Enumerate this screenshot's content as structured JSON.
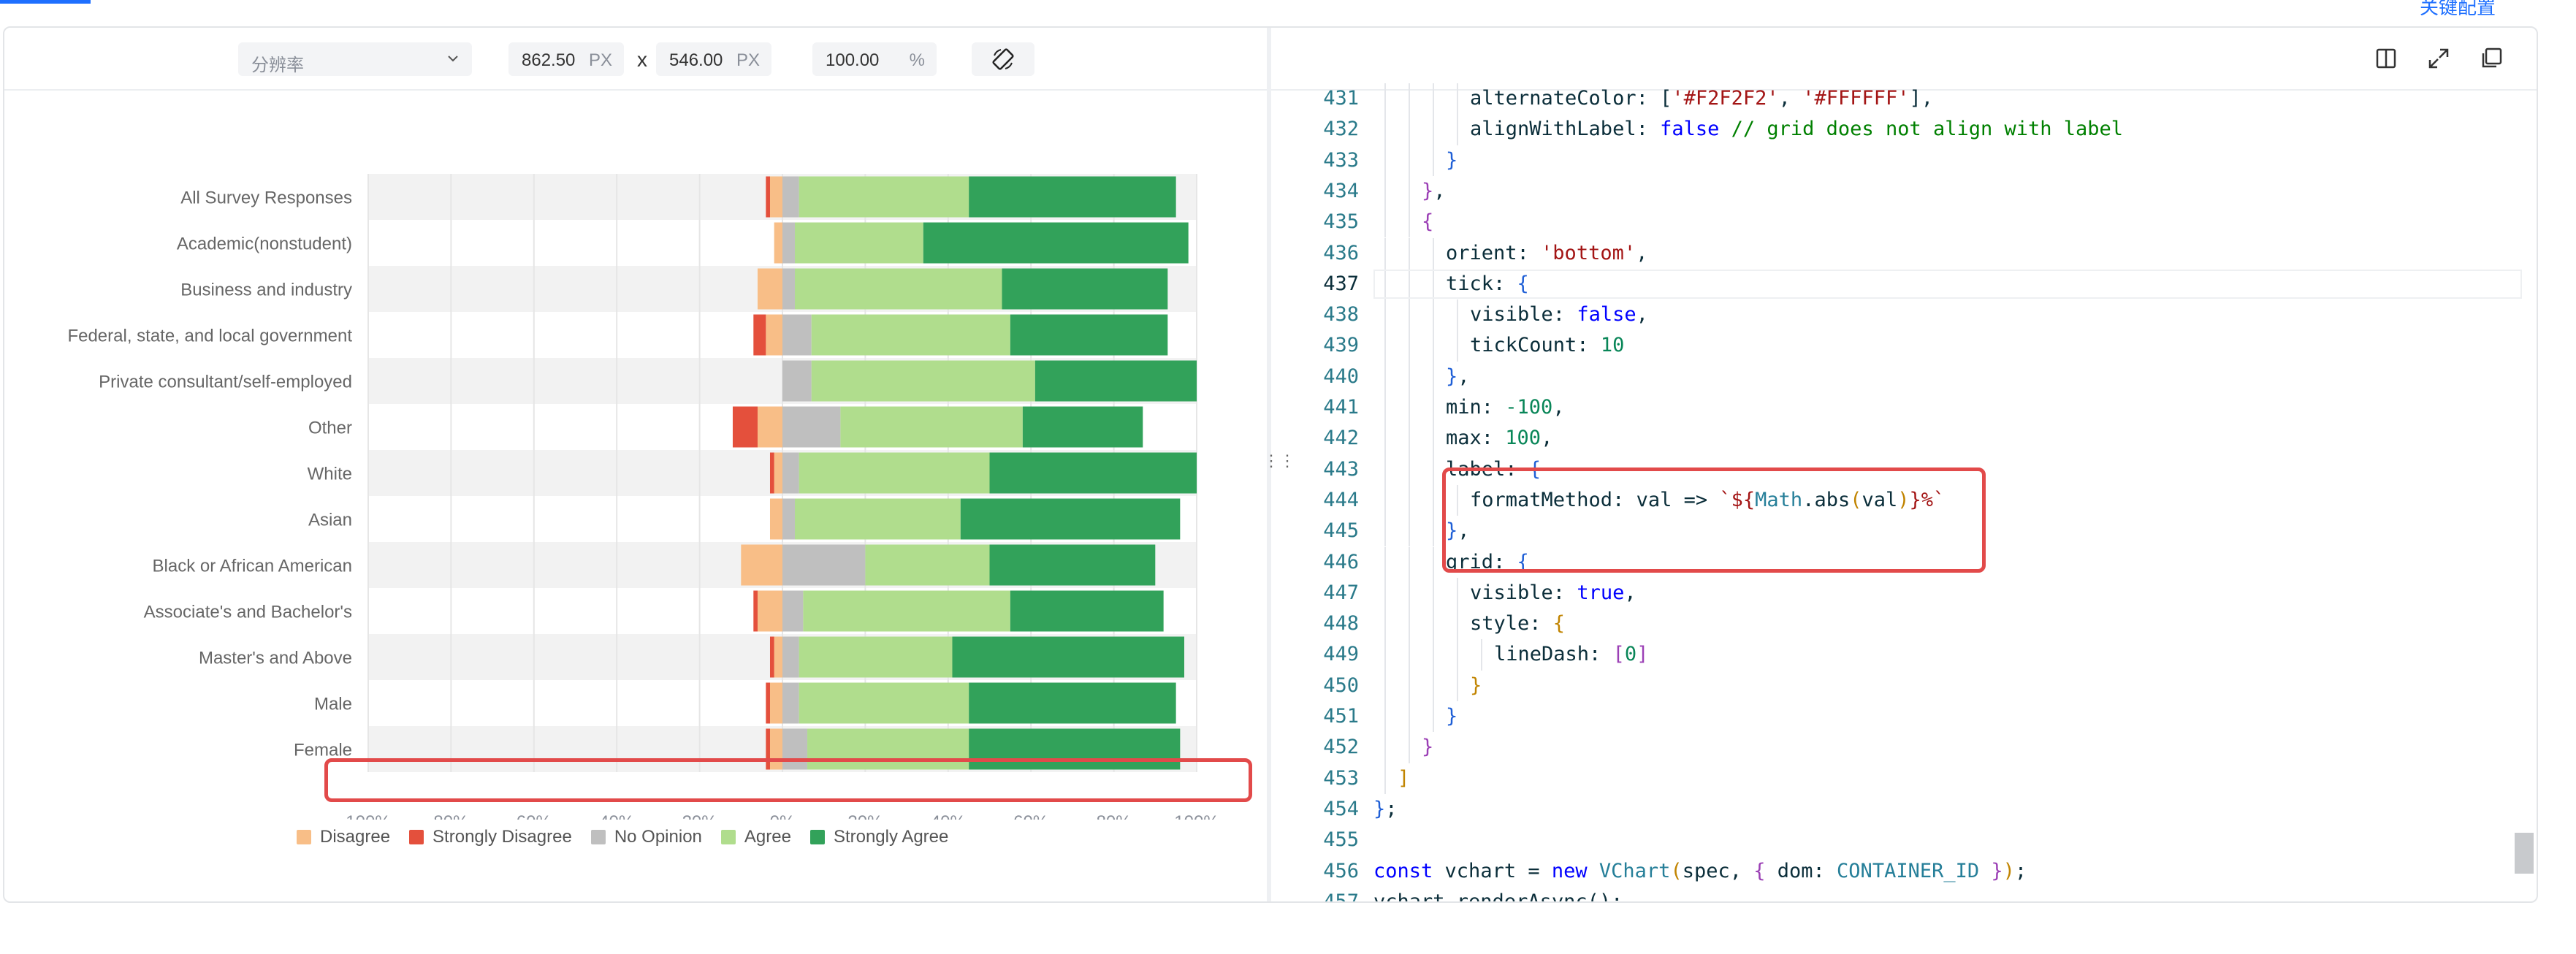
{
  "top_right_link": "关键配置",
  "toolbar": {
    "resolution_placeholder": "分辨率",
    "width_value": "862.50",
    "width_unit": "PX",
    "separator": "x",
    "height_value": "546.00",
    "height_unit": "PX",
    "zoom_value": "100.00",
    "zoom_unit": "%"
  },
  "chart_data": {
    "type": "bar",
    "stacked": true,
    "orientation": "horizontal",
    "categories": [
      "All Survey Responses",
      "Academic(nonstudent)",
      "Business and industry",
      "Federal, state, and local government",
      "Private consultant/self-employed",
      "Other",
      "White",
      "Asian",
      "Black or African American",
      "Associate's and Bachelor's",
      "Master's and Above",
      "Male",
      "Female"
    ],
    "series": [
      {
        "name": "Disagree",
        "color": "#f8be87",
        "values": [
          -3,
          -2,
          -6,
          -4,
          0,
          -6,
          -2,
          -3,
          -10,
          -6,
          -2,
          -3,
          -3
        ]
      },
      {
        "name": "Strongly Disagree",
        "color": "#e4503c",
        "values": [
          -1,
          0,
          0,
          -3,
          0,
          -6,
          -1,
          0,
          0,
          -1,
          -1,
          -1,
          -1
        ]
      },
      {
        "name": "No Opinion",
        "color": "#bfbfbf",
        "values": [
          4,
          3,
          3,
          7,
          7,
          14,
          4,
          3,
          20,
          5,
          4,
          4,
          6
        ]
      },
      {
        "name": "Agree",
        "color": "#b0dd8d",
        "values": [
          41,
          31,
          50,
          48,
          54,
          44,
          46,
          40,
          30,
          50,
          37,
          41,
          39
        ]
      },
      {
        "name": "Strongly Agree",
        "color": "#32a25a",
        "values": [
          50,
          64,
          40,
          38,
          39,
          29,
          50,
          53,
          40,
          37,
          56,
          50,
          51
        ]
      }
    ],
    "xlim": [
      -100,
      100
    ],
    "x_tick_labels": [
      "100%",
      "80%",
      "60%",
      "40%",
      "20%",
      "0%",
      "20%",
      "40%",
      "60%",
      "80%",
      "100%"
    ],
    "grid": true,
    "alternate_band_colors": [
      "#f2f2f2",
      "#ffffff"
    ],
    "legend_position": "bottom-left"
  },
  "code": {
    "lines": [
      {
        "n": "431",
        "indent": 4,
        "tokens": [
          [
            "t-key",
            "alternateColor: "
          ],
          [
            "t-punc",
            "["
          ],
          [
            "t-str",
            "'#F2F2F2'"
          ],
          [
            "t-punc",
            ", "
          ],
          [
            "t-str",
            "'#FFFFFF'"
          ],
          [
            "t-punc",
            "],"
          ]
        ]
      },
      {
        "n": "432",
        "indent": 4,
        "tokens": [
          [
            "t-key",
            "alignWithLabel: "
          ],
          [
            "t-bool",
            "false"
          ],
          [
            "t-com",
            " // grid does not align with label"
          ]
        ]
      },
      {
        "n": "433",
        "indent": 3,
        "tokens": [
          [
            "t-b3",
            "}"
          ]
        ]
      },
      {
        "n": "434",
        "indent": 2,
        "tokens": [
          [
            "t-b2",
            "}"
          ],
          [
            "t-punc",
            ","
          ]
        ]
      },
      {
        "n": "435",
        "indent": 2,
        "tokens": [
          [
            "t-b2",
            "{"
          ]
        ]
      },
      {
        "n": "436",
        "indent": 3,
        "tokens": [
          [
            "t-key",
            "orient: "
          ],
          [
            "t-str",
            "'bottom'"
          ],
          [
            "t-punc",
            ","
          ]
        ]
      },
      {
        "n": "437",
        "indent": 3,
        "tokens": [
          [
            "t-key",
            "tick: "
          ],
          [
            "t-b3",
            "{"
          ]
        ]
      },
      {
        "n": "438",
        "indent": 4,
        "tokens": [
          [
            "t-key",
            "visible: "
          ],
          [
            "t-bool",
            "false"
          ],
          [
            "t-punc",
            ","
          ]
        ]
      },
      {
        "n": "439",
        "indent": 4,
        "tokens": [
          [
            "t-key",
            "tickCount: "
          ],
          [
            "t-num",
            "10"
          ]
        ]
      },
      {
        "n": "440",
        "indent": 3,
        "tokens": [
          [
            "t-b3",
            "}"
          ],
          [
            "t-punc",
            ","
          ]
        ]
      },
      {
        "n": "441",
        "indent": 3,
        "tokens": [
          [
            "t-key",
            "min: "
          ],
          [
            "t-num",
            "-100"
          ],
          [
            "t-punc",
            ","
          ]
        ]
      },
      {
        "n": "442",
        "indent": 3,
        "tokens": [
          [
            "t-key",
            "max: "
          ],
          [
            "t-num",
            "100"
          ],
          [
            "t-punc",
            ","
          ]
        ]
      },
      {
        "n": "443",
        "indent": 3,
        "tokens": [
          [
            "t-key",
            "label: "
          ],
          [
            "t-b3",
            "{"
          ]
        ]
      },
      {
        "n": "444",
        "indent": 4,
        "tokens": [
          [
            "t-key",
            "formatMethod: val => "
          ],
          [
            "t-str",
            "`${"
          ],
          [
            "t-cls",
            "Math"
          ],
          [
            "t-punc",
            ".abs"
          ],
          [
            "t-b1",
            "("
          ],
          [
            "t-punc",
            "val"
          ],
          [
            "t-b1",
            ")"
          ],
          [
            "t-str",
            "}%`"
          ]
        ]
      },
      {
        "n": "445",
        "indent": 3,
        "tokens": [
          [
            "t-b3",
            "}"
          ],
          [
            "t-punc",
            ","
          ]
        ]
      },
      {
        "n": "446",
        "indent": 3,
        "tokens": [
          [
            "t-key",
            "grid: "
          ],
          [
            "t-b3",
            "{"
          ]
        ]
      },
      {
        "n": "447",
        "indent": 4,
        "tokens": [
          [
            "t-key",
            "visible: "
          ],
          [
            "t-bool",
            "true"
          ],
          [
            "t-punc",
            ","
          ]
        ]
      },
      {
        "n": "448",
        "indent": 4,
        "tokens": [
          [
            "t-key",
            "style: "
          ],
          [
            "t-b1",
            "{"
          ]
        ]
      },
      {
        "n": "449",
        "indent": 5,
        "tokens": [
          [
            "t-key",
            "lineDash: "
          ],
          [
            "t-b2",
            "["
          ],
          [
            "t-num",
            "0"
          ],
          [
            "t-b2",
            "]"
          ]
        ]
      },
      {
        "n": "450",
        "indent": 4,
        "tokens": [
          [
            "t-b1",
            "}"
          ]
        ]
      },
      {
        "n": "451",
        "indent": 3,
        "tokens": [
          [
            "t-b3",
            "}"
          ]
        ]
      },
      {
        "n": "452",
        "indent": 2,
        "tokens": [
          [
            "t-b2",
            "}"
          ]
        ]
      },
      {
        "n": "453",
        "indent": 1,
        "tokens": [
          [
            "t-b1",
            "]"
          ]
        ]
      },
      {
        "n": "454",
        "indent": 0,
        "tokens": [
          [
            "t-b3",
            "}"
          ],
          [
            "t-punc",
            ";"
          ]
        ]
      },
      {
        "n": "455",
        "indent": 0,
        "tokens": []
      },
      {
        "n": "456",
        "indent": 0,
        "tokens": [
          [
            "t-kw",
            "const "
          ],
          [
            "t-punc",
            "vchart = "
          ],
          [
            "t-kw",
            "new "
          ],
          [
            "t-cls",
            "VChart"
          ],
          [
            "t-b1",
            "("
          ],
          [
            "t-punc",
            "spec, "
          ],
          [
            "t-b2",
            "{ "
          ],
          [
            "t-punc",
            "dom: "
          ],
          [
            "t-cls",
            "CONTAINER_ID"
          ],
          [
            "t-b2",
            " }"
          ],
          [
            "t-b1",
            ")"
          ],
          [
            "t-punc",
            ";"
          ]
        ]
      },
      {
        "n": "457",
        "indent": 0,
        "tokens": [
          [
            "t-punc",
            "vchart.renderAsync();"
          ]
        ]
      }
    ],
    "active_line": "437"
  }
}
